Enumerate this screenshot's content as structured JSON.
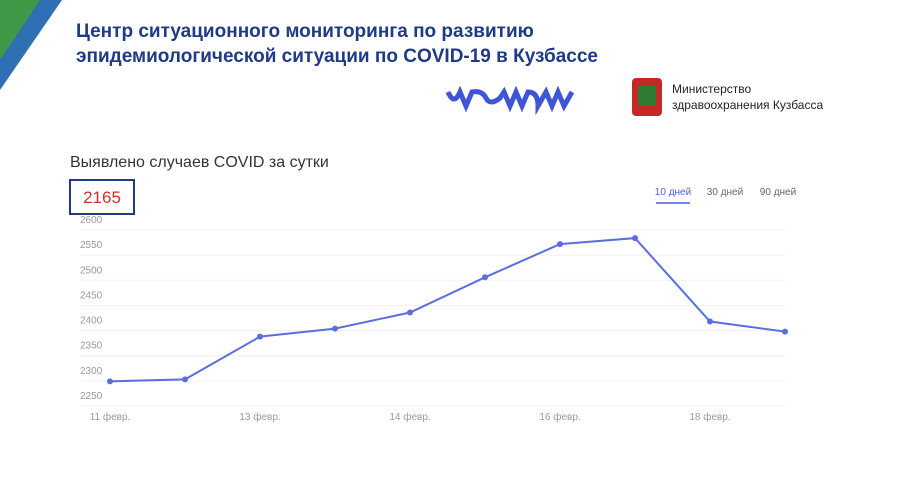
{
  "header": {
    "title_lines": [
      "Центр ситуационного мониторинга по развитию",
      "эпидемиологической ситуации по COVID-19 в Кузбассе"
    ],
    "ministry_lines": [
      "Министерство",
      "здравоохранения Кузбасса"
    ]
  },
  "chart_data": {
    "type": "line",
    "title": "Выявлено случаев COVID за сутки",
    "highlight": "2165",
    "tabs": [
      "10 дней",
      "30 дней",
      "90 дней"
    ],
    "categories": [
      "11 февр.",
      null,
      "13 февр.",
      null,
      "14 февр.",
      null,
      "16 февр.",
      null,
      "18 февр.",
      null
    ],
    "series": [
      {
        "name": "Выявлено",
        "color": "#5a6ee2",
        "values": [
          2291,
          2295,
          2380,
          2396,
          2428,
          2498,
          2564,
          2576,
          2410,
          2390
        ]
      }
    ],
    "ylim": [
      2250,
      2600
    ],
    "yticks": [
      2250,
      2300,
      2350,
      2400,
      2450,
      2500,
      2550,
      2600
    ],
    "grid": true
  }
}
